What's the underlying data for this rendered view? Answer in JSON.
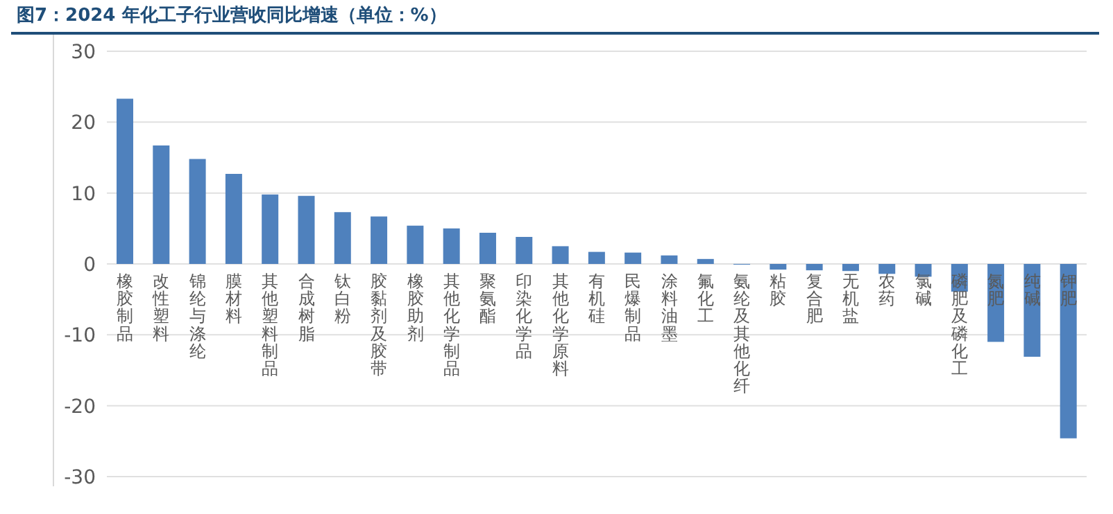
{
  "chart_data": {
    "type": "bar",
    "title": "图7：2024 年化工子行业营收同比增速（单位：%）",
    "categories": [
      "橡胶制品",
      "改性塑料",
      "锦纶与涤纶",
      "膜材料",
      "其他塑料制品",
      "合成树脂",
      "钛白粉",
      "胶黏剂及胶带",
      "橡胶助剂",
      "其他化学制品",
      "聚氨酯",
      "印染化学品",
      "其他化学原料",
      "有机硅",
      "民爆制品",
      "涂料油墨",
      "氟化工",
      "氨纶及其他化纤",
      "粘胶",
      "复合肥",
      "无机盐",
      "农药",
      "氯碱",
      "磷肥及磷化工",
      "氮肥",
      "纯碱",
      "钾肥"
    ],
    "values": [
      23.3,
      16.7,
      14.8,
      12.7,
      9.8,
      9.6,
      7.3,
      6.7,
      5.4,
      5.0,
      4.4,
      3.8,
      2.5,
      1.7,
      1.6,
      1.2,
      0.7,
      -0.1,
      -0.8,
      -0.9,
      -1.0,
      -1.4,
      -1.8,
      -3.9,
      -11.0,
      -13.1,
      -24.6
    ],
    "color": "#4f81bd",
    "ylim": [
      -30,
      30
    ],
    "yticks": [
      -30,
      -20,
      -10,
      0,
      10,
      20,
      30
    ],
    "grid": "y"
  }
}
